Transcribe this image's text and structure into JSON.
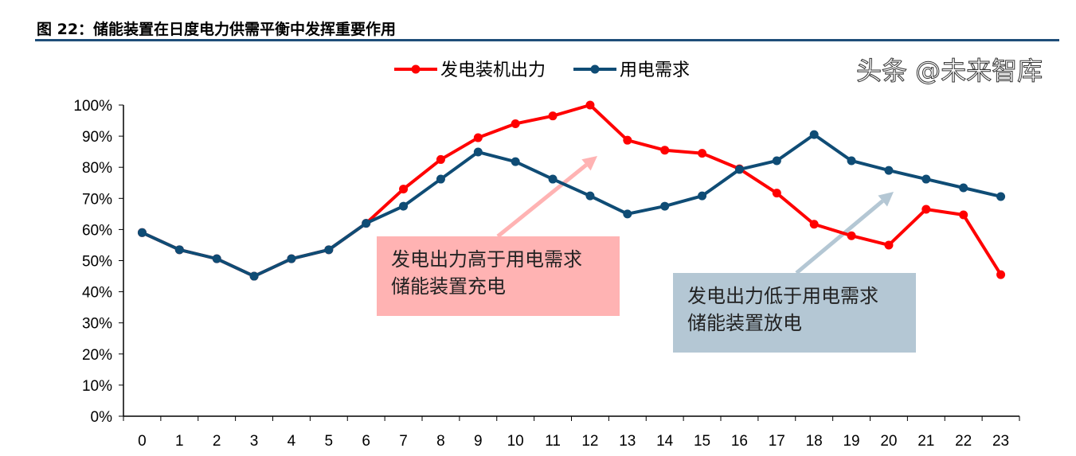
{
  "figure_title": "图 22：储能装置在日度电力供需平衡中发挥重要作用",
  "watermark": "头条 @未来智库",
  "chart_data": {
    "type": "line",
    "title": "",
    "xlabel": "",
    "ylabel": "",
    "categories": [
      "0",
      "1",
      "2",
      "3",
      "4",
      "5",
      "6",
      "7",
      "8",
      "9",
      "10",
      "11",
      "12",
      "13",
      "14",
      "15",
      "16",
      "17",
      "18",
      "19",
      "20",
      "21",
      "22",
      "23"
    ],
    "ylim": [
      0,
      100
    ],
    "yticks": [
      "0%",
      "10%",
      "20%",
      "30%",
      "40%",
      "50%",
      "60%",
      "70%",
      "80%",
      "90%",
      "100%"
    ],
    "grid": false,
    "legend": "top-center",
    "series": [
      {
        "name": "发电装机出力",
        "color": "#FF0000",
        "values": [
          59,
          53.5,
          50.6,
          45,
          50.6,
          53.5,
          62,
          73,
          82.5,
          89.5,
          94,
          96.5,
          100,
          88.7,
          85.5,
          84.5,
          79.5,
          71.7,
          61.7,
          58,
          55,
          66.5,
          64.7,
          45.5
        ]
      },
      {
        "name": "用电需求",
        "color": "#0F4C75",
        "values": [
          59,
          53.5,
          50.6,
          45,
          50.6,
          53.5,
          62,
          67.5,
          76.2,
          84.9,
          81.8,
          76.2,
          70.8,
          65,
          67.5,
          70.8,
          79.3,
          82.1,
          90.5,
          82.1,
          79,
          76.2,
          73.4,
          70.6
        ]
      }
    ],
    "annotations": [
      {
        "lines": [
          "发电出力高于用电需求",
          "储能装置充电"
        ],
        "color": "#FFB3B3",
        "arrow_color": "#FFB3B3"
      },
      {
        "lines": [
          "发电出力低于用电需求",
          "储能装置放电"
        ],
        "color": "#B4C7D4",
        "arrow_color": "#B4C7D4"
      }
    ]
  }
}
